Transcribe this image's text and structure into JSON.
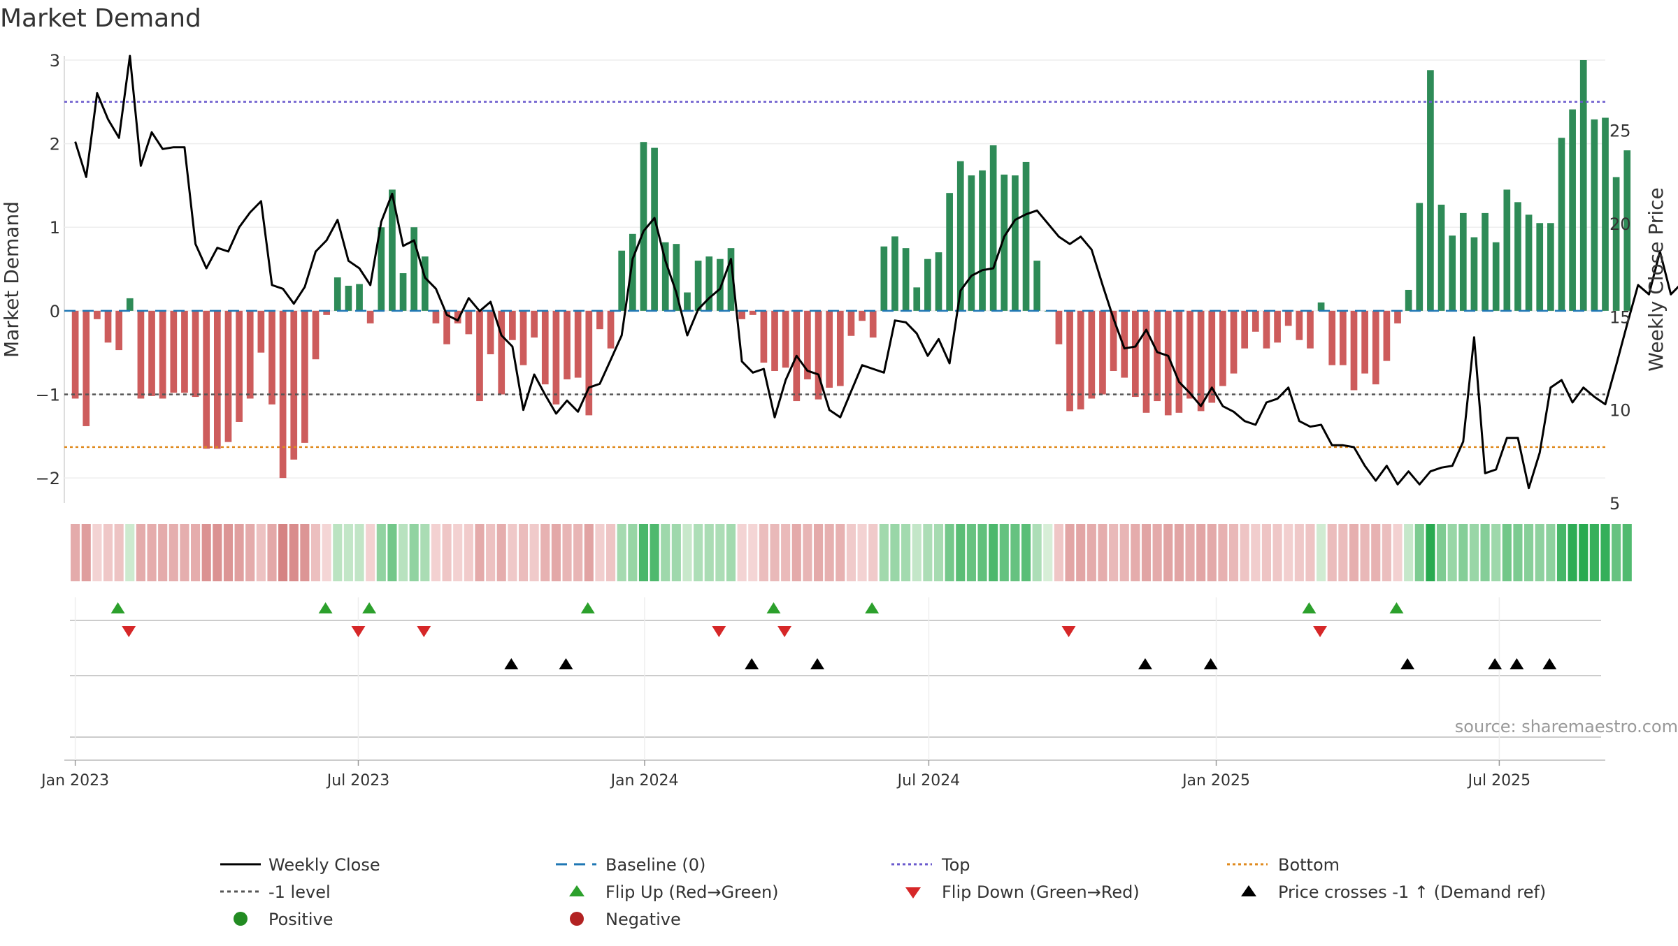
{
  "chart_data": {
    "type": "bar+line",
    "title": "Market Demand",
    "ylabel_left": "Market Demand",
    "ylabel_right": "Weekly Close Price",
    "ylim_left": [
      -2.3,
      3.05
    ],
    "ylim_right": [
      5,
      29
    ],
    "yticks_left": [
      {
        "v": 3,
        "label": "3"
      },
      {
        "v": 2,
        "label": "2"
      },
      {
        "v": 1,
        "label": "1"
      },
      {
        "v": 0,
        "label": "0"
      },
      {
        "v": -1,
        "label": "−1"
      },
      {
        "v": -2,
        "label": "−2"
      }
    ],
    "yticks_right": [
      {
        "v": 25,
        "label": "25"
      },
      {
        "v": 20,
        "label": "20"
      },
      {
        "v": 15,
        "label": "15"
      },
      {
        "v": 10,
        "label": "10"
      },
      {
        "v": 5,
        "label": "5"
      }
    ],
    "x_range_weeks": [
      -1,
      140
    ],
    "x_ticks": [
      {
        "week": 0,
        "label": "Jan 2023"
      },
      {
        "week": 25.9,
        "label": "Jul 2023"
      },
      {
        "week": 52.1,
        "label": "Jan 2024"
      },
      {
        "week": 78.1,
        "label": "Jul 2024"
      },
      {
        "week": 104.4,
        "label": "Jan 2025"
      },
      {
        "week": 130.3,
        "label": "Jul 2025"
      }
    ],
    "reference_lines": {
      "top": 2.5,
      "bottom": -1.63,
      "minus_one": -1,
      "baseline": 0
    },
    "demand": [
      -1.05,
      -1.38,
      -0.1,
      -0.38,
      -0.47,
      0.15,
      -1.05,
      -1.02,
      -1.05,
      -0.98,
      -0.98,
      -1.03,
      -1.65,
      -1.65,
      -1.57,
      -1.33,
      -1.05,
      -0.5,
      -1.12,
      -2.0,
      -1.78,
      -1.58,
      -0.58,
      -0.05,
      0.4,
      0.3,
      0.32,
      -0.15,
      1.0,
      1.45,
      0.45,
      1.0,
      0.65,
      -0.15,
      -0.4,
      -0.15,
      -0.28,
      -1.08,
      -0.52,
      -1.0,
      -0.35,
      -0.65,
      -0.32,
      -0.88,
      -1.12,
      -0.82,
      -0.8,
      -1.25,
      -0.22,
      -0.45,
      0.72,
      0.92,
      2.02,
      1.95,
      0.82,
      0.8,
      0.22,
      0.6,
      0.65,
      0.62,
      0.75,
      -0.1,
      -0.05,
      -0.62,
      -0.72,
      -0.68,
      -1.08,
      -0.82,
      -1.06,
      -0.92,
      -0.9,
      -0.3,
      -0.12,
      -0.32,
      0.77,
      0.89,
      0.75,
      0.28,
      0.62,
      0.7,
      1.41,
      1.79,
      1.62,
      1.68,
      1.98,
      1.63,
      1.62,
      1.78,
      0.6,
      0.0,
      -0.4,
      -1.2,
      -1.18,
      -1.05,
      -1.0,
      -0.72,
      -0.8,
      -1.03,
      -1.22,
      -1.08,
      -1.25,
      -1.22,
      -1.05,
      -1.2,
      -1.1,
      -0.9,
      -0.75,
      -0.45,
      -0.25,
      -0.45,
      -0.38,
      -0.18,
      -0.35,
      -0.45,
      0.1,
      -0.65,
      -0.65,
      -0.95,
      -0.75,
      -0.88,
      -0.6,
      -0.15,
      0.25,
      1.29,
      2.88,
      1.27,
      0.9,
      1.17,
      0.88,
      1.17,
      0.82,
      1.45,
      1.3,
      1.15,
      1.05,
      1.05,
      2.07,
      2.41,
      3.0,
      2.29,
      2.31,
      1.6,
      1.92
    ],
    "price": [
      24.4,
      22.5,
      27.0,
      25.6,
      24.6,
      29.0,
      23.1,
      24.9,
      24.0,
      24.1,
      24.1,
      18.9,
      17.6,
      18.7,
      18.5,
      19.8,
      20.6,
      21.2,
      16.7,
      16.5,
      15.7,
      16.6,
      18.5,
      19.1,
      20.2,
      18.0,
      17.6,
      16.7,
      20.1,
      21.6,
      18.8,
      19.1,
      17.1,
      16.5,
      15.1,
      14.8,
      16.0,
      15.3,
      15.8,
      14.0,
      13.4,
      10.0,
      11.9,
      10.8,
      9.8,
      10.5,
      9.9,
      11.2,
      11.4,
      12.7,
      14.0,
      18.1,
      19.6,
      20.3,
      18.0,
      16.3,
      14.0,
      15.4,
      16.0,
      16.5,
      18.1,
      12.6,
      12.0,
      12.2,
      9.6,
      11.6,
      12.9,
      12.1,
      11.9,
      10.0,
      9.6,
      11.0,
      12.4,
      12.2,
      12.0,
      14.8,
      14.7,
      14.1,
      12.9,
      13.8,
      12.5,
      16.4,
      17.2,
      17.5,
      17.6,
      19.3,
      20.2,
      20.5,
      20.7,
      20.0,
      19.3,
      18.9,
      19.3,
      18.6,
      16.7,
      14.9,
      13.3,
      13.4,
      14.3,
      13.1,
      12.9,
      11.5,
      10.9,
      10.2,
      11.2,
      10.2,
      9.9,
      9.4,
      9.2,
      10.4,
      10.6,
      11.2,
      9.4,
      9.1,
      9.2,
      8.1,
      8.1,
      8.0,
      7.0,
      6.2,
      7.0,
      6.0,
      6.7,
      6.0,
      6.7,
      6.9,
      7.0,
      8.3,
      13.9,
      6.6,
      6.8,
      8.5,
      8.5,
      5.8,
      7.7,
      11.2,
      11.6,
      10.4,
      11.2,
      10.7,
      10.3,
      12.4,
      14.6,
      16.7,
      16.2,
      18.5,
      16.2,
      16.8
    ],
    "flip_up_weeks": [
      3.9,
      22.9,
      26.9,
      46.9,
      63.9,
      72.9,
      112.9,
      120.9
    ],
    "flip_down_weeks": [
      4.9,
      25.9,
      31.9,
      58.9,
      64.9,
      90.9,
      113.9
    ],
    "price_cross_up_weeks": [
      39.9,
      44.9,
      61.9,
      67.9,
      97.9,
      103.9,
      121.9,
      129.9,
      131.9,
      134.9
    ],
    "legend": [
      {
        "key": "weekly-close",
        "label": "Weekly Close"
      },
      {
        "key": "baseline",
        "label": "Baseline (0)"
      },
      {
        "key": "top",
        "label": "Top"
      },
      {
        "key": "bottom",
        "label": "Bottom"
      },
      {
        "key": "minus-one",
        "label": "-1 level"
      },
      {
        "key": "flip-up",
        "label": "Flip Up (Red→Green)"
      },
      {
        "key": "flip-down",
        "label": "Flip Down (Green→Red)"
      },
      {
        "key": "price-cross",
        "label": "Price crosses -1 ↑ (Demand ref)"
      },
      {
        "key": "positive",
        "label": "Positive"
      },
      {
        "key": "negative",
        "label": "Negative"
      }
    ],
    "source": "source: sharemaestro.com"
  },
  "colors": {
    "positive_bar": "#2e8b57",
    "negative_bar": "#cd5c5c",
    "price_line": "#000000",
    "baseline": "#1f77b4",
    "top": "#6a5acd",
    "bottom": "#e08a1e",
    "minus_one": "#555555",
    "flip_up": "#2ca02c",
    "flip_down": "#d62728",
    "cross": "#000000",
    "positive_dot": "#228b22",
    "negative_dot": "#b22222"
  }
}
